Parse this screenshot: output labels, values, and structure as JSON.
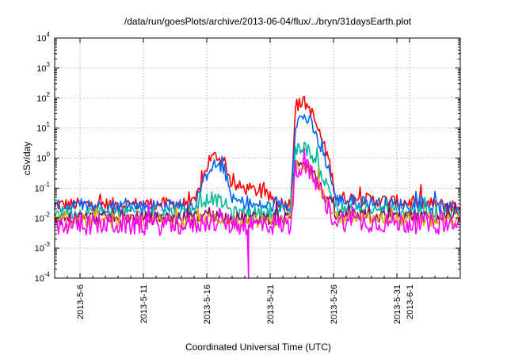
{
  "chart_data": {
    "type": "line",
    "title": "/data/run/goesPlots/archive/2013-06-04/flux/../bryn/31daysEarth.plot",
    "xlabel": "Coordinated Universal Time (UTC)",
    "ylabel": "cSv/day",
    "yscale": "log",
    "ylim": [
      0.0001,
      10000
    ],
    "xlim": [
      "2013-05-04",
      "2013-06-05"
    ],
    "y_ticks": [
      {
        "base": "10",
        "exp": "-4",
        "value": 0.0001
      },
      {
        "base": "10",
        "exp": "-3",
        "value": 0.001
      },
      {
        "base": "10",
        "exp": "-2",
        "value": 0.01
      },
      {
        "base": "10",
        "exp": "-1",
        "value": 0.1
      },
      {
        "base": "10",
        "exp": "0",
        "value": 1
      },
      {
        "base": "10",
        "exp": "1",
        "value": 10
      },
      {
        "base": "10",
        "exp": "2",
        "value": 100
      },
      {
        "base": "10",
        "exp": "3",
        "value": 1000
      },
      {
        "base": "10",
        "exp": "4",
        "value": 10000
      }
    ],
    "x_ticks": [
      {
        "label": "2013-5-6",
        "date": "2013-05-06"
      },
      {
        "label": "2013-5-11",
        "date": "2013-05-11"
      },
      {
        "label": "2013-5-16",
        "date": "2013-05-16"
      },
      {
        "label": "2013-5-21",
        "date": "2013-05-21"
      },
      {
        "label": "2013-5-26",
        "date": "2013-05-26"
      },
      {
        "label": "2013-5-31",
        "date": "2013-05-31"
      },
      {
        "label": "2013-6-1",
        "date": "2013-06-01"
      }
    ],
    "grid": true,
    "series": [
      {
        "color": "#ff0000",
        "x": [
          "2013-05-04",
          "2013-05-15",
          "2013-05-15.6",
          "2013-05-16.2",
          "2013-05-16.8",
          "2013-05-17.4",
          "2013-05-18",
          "2013-05-20",
          "2013-05-22",
          "2013-05-22.6",
          "2013-05-23",
          "2013-05-23.6",
          "2013-05-24.2",
          "2013-05-25",
          "2013-05-25.6",
          "2013-05-26.2",
          "2013-06-05"
        ],
        "y": [
          0.028,
          0.03,
          0.15,
          0.9,
          1.2,
          0.8,
          0.12,
          0.08,
          0.03,
          0.03,
          50,
          80,
          40,
          5,
          1,
          0.05,
          0.025
        ]
      },
      {
        "color": "#0066ff",
        "x": [
          "2013-05-04",
          "2013-05-15",
          "2013-05-15.6",
          "2013-05-16.2",
          "2013-05-16.8",
          "2013-05-17.4",
          "2013-05-18",
          "2013-05-20",
          "2013-05-22",
          "2013-05-22.6",
          "2013-05-23",
          "2013-05-23.6",
          "2013-05-24.2",
          "2013-05-25",
          "2013-05-25.6",
          "2013-05-26.2",
          "2013-06-05"
        ],
        "y": [
          0.025,
          0.026,
          0.1,
          0.5,
          0.6,
          0.4,
          0.04,
          0.025,
          0.025,
          0.025,
          15,
          25,
          15,
          2,
          0.5,
          0.04,
          0.02
        ]
      },
      {
        "color": "#00bb99",
        "x": [
          "2013-05-04",
          "2013-05-15",
          "2013-05-15.6",
          "2013-05-16.2",
          "2013-05-16.8",
          "2013-05-17.4",
          "2013-05-18",
          "2013-05-20",
          "2013-05-22",
          "2013-05-22.6",
          "2013-05-23",
          "2013-05-23.6",
          "2013-05-24.2",
          "2013-05-25",
          "2013-05-25.6",
          "2013-05-26.2",
          "2013-06-05"
        ],
        "y": [
          0.015,
          0.016,
          0.03,
          0.05,
          0.04,
          0.03,
          0.015,
          0.015,
          0.015,
          0.015,
          1.5,
          2.5,
          1.5,
          0.3,
          0.1,
          0.02,
          0.015
        ]
      },
      {
        "color": "#990066",
        "x": [
          "2013-05-04",
          "2013-05-15",
          "2013-05-15.6",
          "2013-05-16.2",
          "2013-05-16.8",
          "2013-05-17.4",
          "2013-05-18",
          "2013-05-20",
          "2013-05-22",
          "2013-05-22.6",
          "2013-05-23",
          "2013-05-23.6",
          "2013-05-24.2",
          "2013-05-25",
          "2013-05-25.6",
          "2013-05-26.2",
          "2013-06-05"
        ],
        "y": [
          0.01,
          0.01,
          0.012,
          0.015,
          0.012,
          0.011,
          0.01,
          0.01,
          0.01,
          0.01,
          0.6,
          0.9,
          0.5,
          0.1,
          0.04,
          0.012,
          0.01
        ]
      },
      {
        "color": "#ddaa00",
        "x": [
          "2013-05-04",
          "2013-05-15",
          "2013-05-15.6",
          "2013-05-16.2",
          "2013-05-16.8",
          "2013-05-17.4",
          "2013-05-18",
          "2013-05-20",
          "2013-05-22",
          "2013-05-22.6",
          "2013-05-23",
          "2013-05-23.6",
          "2013-05-24.2",
          "2013-05-25",
          "2013-05-25.6",
          "2013-05-26.2",
          "2013-06-05"
        ],
        "y": [
          0.008,
          0.008,
          0.009,
          0.01,
          0.009,
          0.009,
          0.008,
          0.008,
          0.008,
          0.008,
          0.5,
          0.8,
          0.4,
          0.08,
          0.03,
          0.01,
          0.008
        ]
      },
      {
        "color": "#ff00ff",
        "x": [
          "2013-05-04",
          "2013-05-15",
          "2013-05-15.6",
          "2013-05-16.2",
          "2013-05-16.8",
          "2013-05-17.4",
          "2013-05-18",
          "2013-05-19.2",
          "2013-05-19.3",
          "2013-05-19.4",
          "2013-05-22",
          "2013-05-22.6",
          "2013-05-23",
          "2013-05-23.6",
          "2013-05-24.2",
          "2013-05-25",
          "2013-05-25.6",
          "2013-05-26.2",
          "2013-06-05"
        ],
        "y": [
          0.006,
          0.006,
          0.007,
          0.008,
          0.007,
          0.007,
          0.006,
          0.006,
          0.0001,
          0.006,
          0.006,
          0.006,
          0.4,
          0.7,
          0.3,
          0.06,
          0.02,
          0.008,
          0.006
        ]
      }
    ]
  }
}
